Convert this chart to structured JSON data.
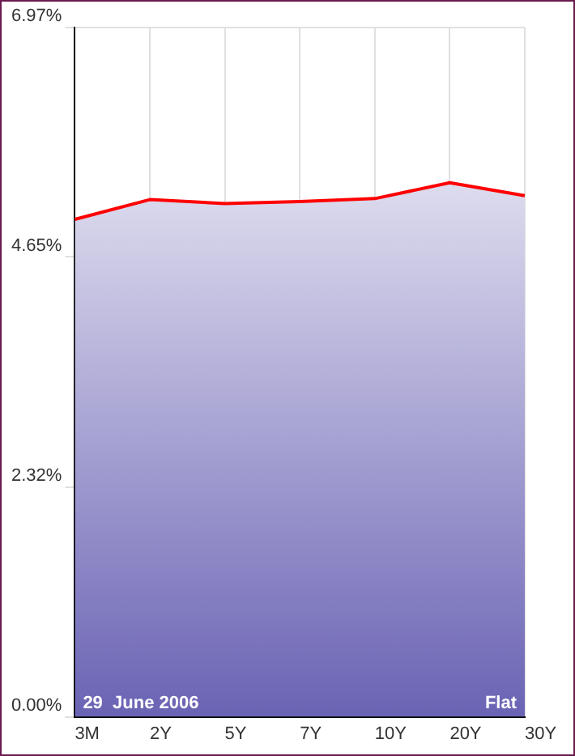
{
  "chart_data": {
    "type": "area",
    "categories": [
      "3M",
      "2Y",
      "5Y",
      "7Y",
      "10Y",
      "20Y",
      "30Y"
    ],
    "series": [
      {
        "color": "#ff0000",
        "values": [
          5.03,
          5.23,
          5.19,
          5.21,
          5.24,
          5.4,
          5.27
        ]
      }
    ],
    "ylim": [
      0,
      6.97
    ],
    "yticks": [
      {
        "value": 0,
        "label": "0.00%"
      },
      {
        "value": 2.32,
        "label": "2.32%"
      },
      {
        "value": 4.65,
        "label": "4.65%"
      },
      {
        "value": 6.97,
        "label": "6.97%"
      }
    ],
    "grid": true,
    "legend": false,
    "marker": "none",
    "line_style": "solid",
    "annotations": [
      "29  June 2006",
      "Flat"
    ]
  }
}
